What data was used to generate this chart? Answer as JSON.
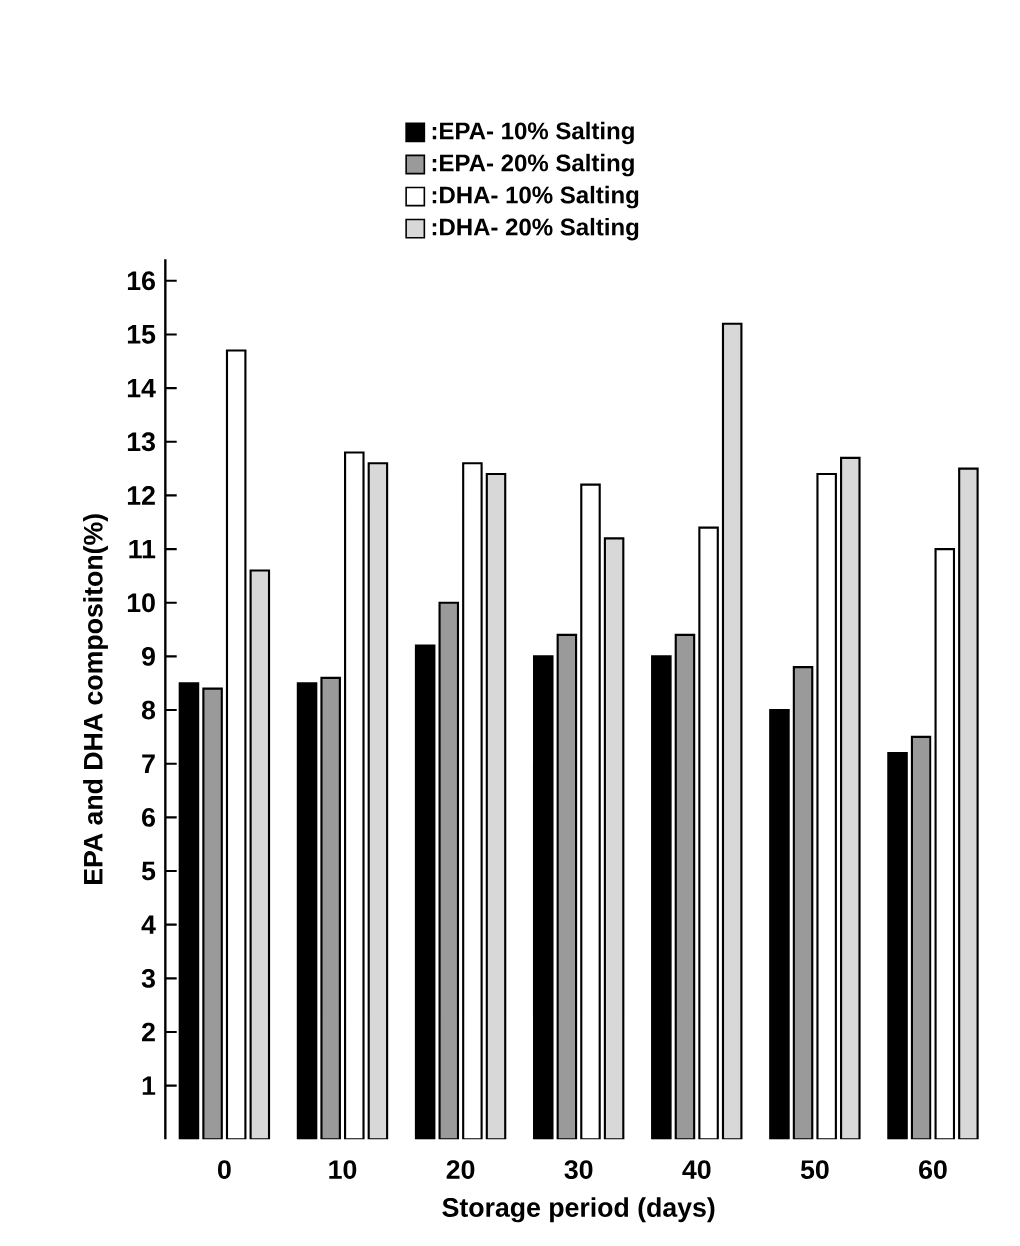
{
  "chart_data": {
    "type": "bar",
    "xlabel": "Storage period (days)",
    "ylabel": "EPA and DHA compositon(%)",
    "categories": [
      "0",
      "10",
      "20",
      "30",
      "40",
      "50",
      "60"
    ],
    "series": [
      {
        "name": ":EPA- 10% Salting",
        "color": "#000000",
        "values": [
          8.5,
          8.5,
          9.2,
          9.0,
          9.0,
          8.0,
          7.2
        ]
      },
      {
        "name": ":EPA- 20% Salting",
        "color": "#9a9a9a",
        "values": [
          8.4,
          8.6,
          10.0,
          9.4,
          9.4,
          8.8,
          7.5
        ]
      },
      {
        "name": ":DHA- 10% Salting",
        "color": "#ffffff",
        "values": [
          14.7,
          12.8,
          12.6,
          12.2,
          11.4,
          12.4,
          11.0
        ]
      },
      {
        "name": ":DHA- 20% Salting",
        "color": "#d8d8d8",
        "values": [
          10.6,
          12.6,
          12.4,
          11.2,
          15.2,
          12.7,
          12.5
        ]
      }
    ],
    "ylim": [
      0,
      16.4
    ],
    "yticks": [
      1,
      2,
      3,
      4,
      5,
      6,
      7,
      8,
      9,
      10,
      11,
      12,
      13,
      14,
      15,
      16
    ],
    "grid": false,
    "legend": "top"
  }
}
